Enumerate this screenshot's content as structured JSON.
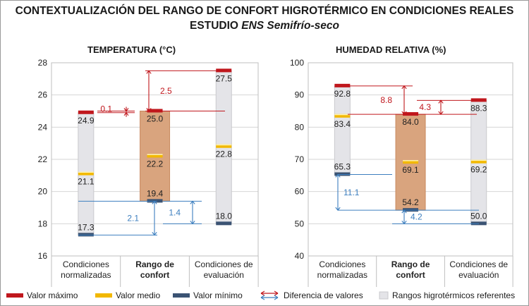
{
  "title": {
    "line1": "CONTEXTUALIZACIÓN DEL RANGO DE CONFORT HIGROTÉRMICO EN CONDICIONES REALES",
    "line2_prefix": "ESTUDIO ",
    "line2_italic": "ENS Semifrío-seco"
  },
  "colors": {
    "max": "#c0171d",
    "mid": "#f2b800",
    "min": "#3b5373",
    "diff_red": "#c0171d",
    "diff_blue": "#3d7fbf",
    "range_gray": "#e4e4e8",
    "range_orange": "#d9a47e"
  },
  "legend": {
    "max": "Valor máximo",
    "mid": "Valor medio",
    "min": "Valor mínimo",
    "diff": "Diferencia de valores",
    "range": "Rangos higrotérmicos referentes"
  },
  "chart_data": [
    {
      "type": "range",
      "title": "TEMPERATURA (°C)",
      "ylim": [
        16,
        28
      ],
      "yticks": [
        16,
        18,
        20,
        22,
        24,
        26,
        28
      ],
      "categories": [
        "Condiciones normalizadas",
        "Rango de confort",
        "Condiciones de evaluación"
      ],
      "category_lines": [
        [
          "Condiciones",
          "normalizadas"
        ],
        [
          "Rango de",
          "confort"
        ],
        [
          "Condiciones de",
          "evaluación"
        ]
      ],
      "highlight_category": 1,
      "series": [
        {
          "name": "Valor máximo",
          "values": [
            24.9,
            25.0,
            27.5
          ]
        },
        {
          "name": "Valor medio",
          "values": [
            21.1,
            22.2,
            22.8
          ]
        },
        {
          "name": "Valor mínimo",
          "values": [
            17.3,
            19.4,
            18.0
          ]
        }
      ],
      "differences": [
        {
          "label": "0.1",
          "color": "red",
          "from": 24.9,
          "to": 25.0
        },
        {
          "label": "2.5",
          "color": "red",
          "from": 25.0,
          "to": 27.5
        },
        {
          "label": "2.1",
          "color": "blue",
          "from": 17.3,
          "to": 19.4
        },
        {
          "label": "1.4",
          "color": "blue",
          "from": 18.0,
          "to": 19.4
        }
      ]
    },
    {
      "type": "range",
      "title": "HUMEDAD RELATIVA (%)",
      "ylim": [
        40,
        100
      ],
      "yticks": [
        40,
        50,
        60,
        70,
        80,
        90,
        100
      ],
      "categories": [
        "Condiciones normalizadas",
        "Rango de confort",
        "Condiciones de evaluación"
      ],
      "category_lines": [
        [
          "Condiciones",
          "normalizadas"
        ],
        [
          "Rango de",
          "confort"
        ],
        [
          "Condiciones de",
          "evaluación"
        ]
      ],
      "highlight_category": 1,
      "series": [
        {
          "name": "Valor máximo",
          "values": [
            92.8,
            84.0,
            88.3
          ]
        },
        {
          "name": "Valor medio",
          "values": [
            83.4,
            69.1,
            69.2
          ]
        },
        {
          "name": "Valor mínimo",
          "values": [
            65.3,
            54.2,
            50.0
          ]
        }
      ],
      "differences": [
        {
          "label": "8.8",
          "color": "red",
          "from": 84.0,
          "to": 92.8
        },
        {
          "label": "4.3",
          "color": "red",
          "from": 84.0,
          "to": 88.3
        },
        {
          "label": "11.1",
          "color": "blue",
          "from": 54.2,
          "to": 65.3
        },
        {
          "label": "4.2",
          "color": "blue",
          "from": 50.0,
          "to": 54.2
        }
      ]
    }
  ]
}
